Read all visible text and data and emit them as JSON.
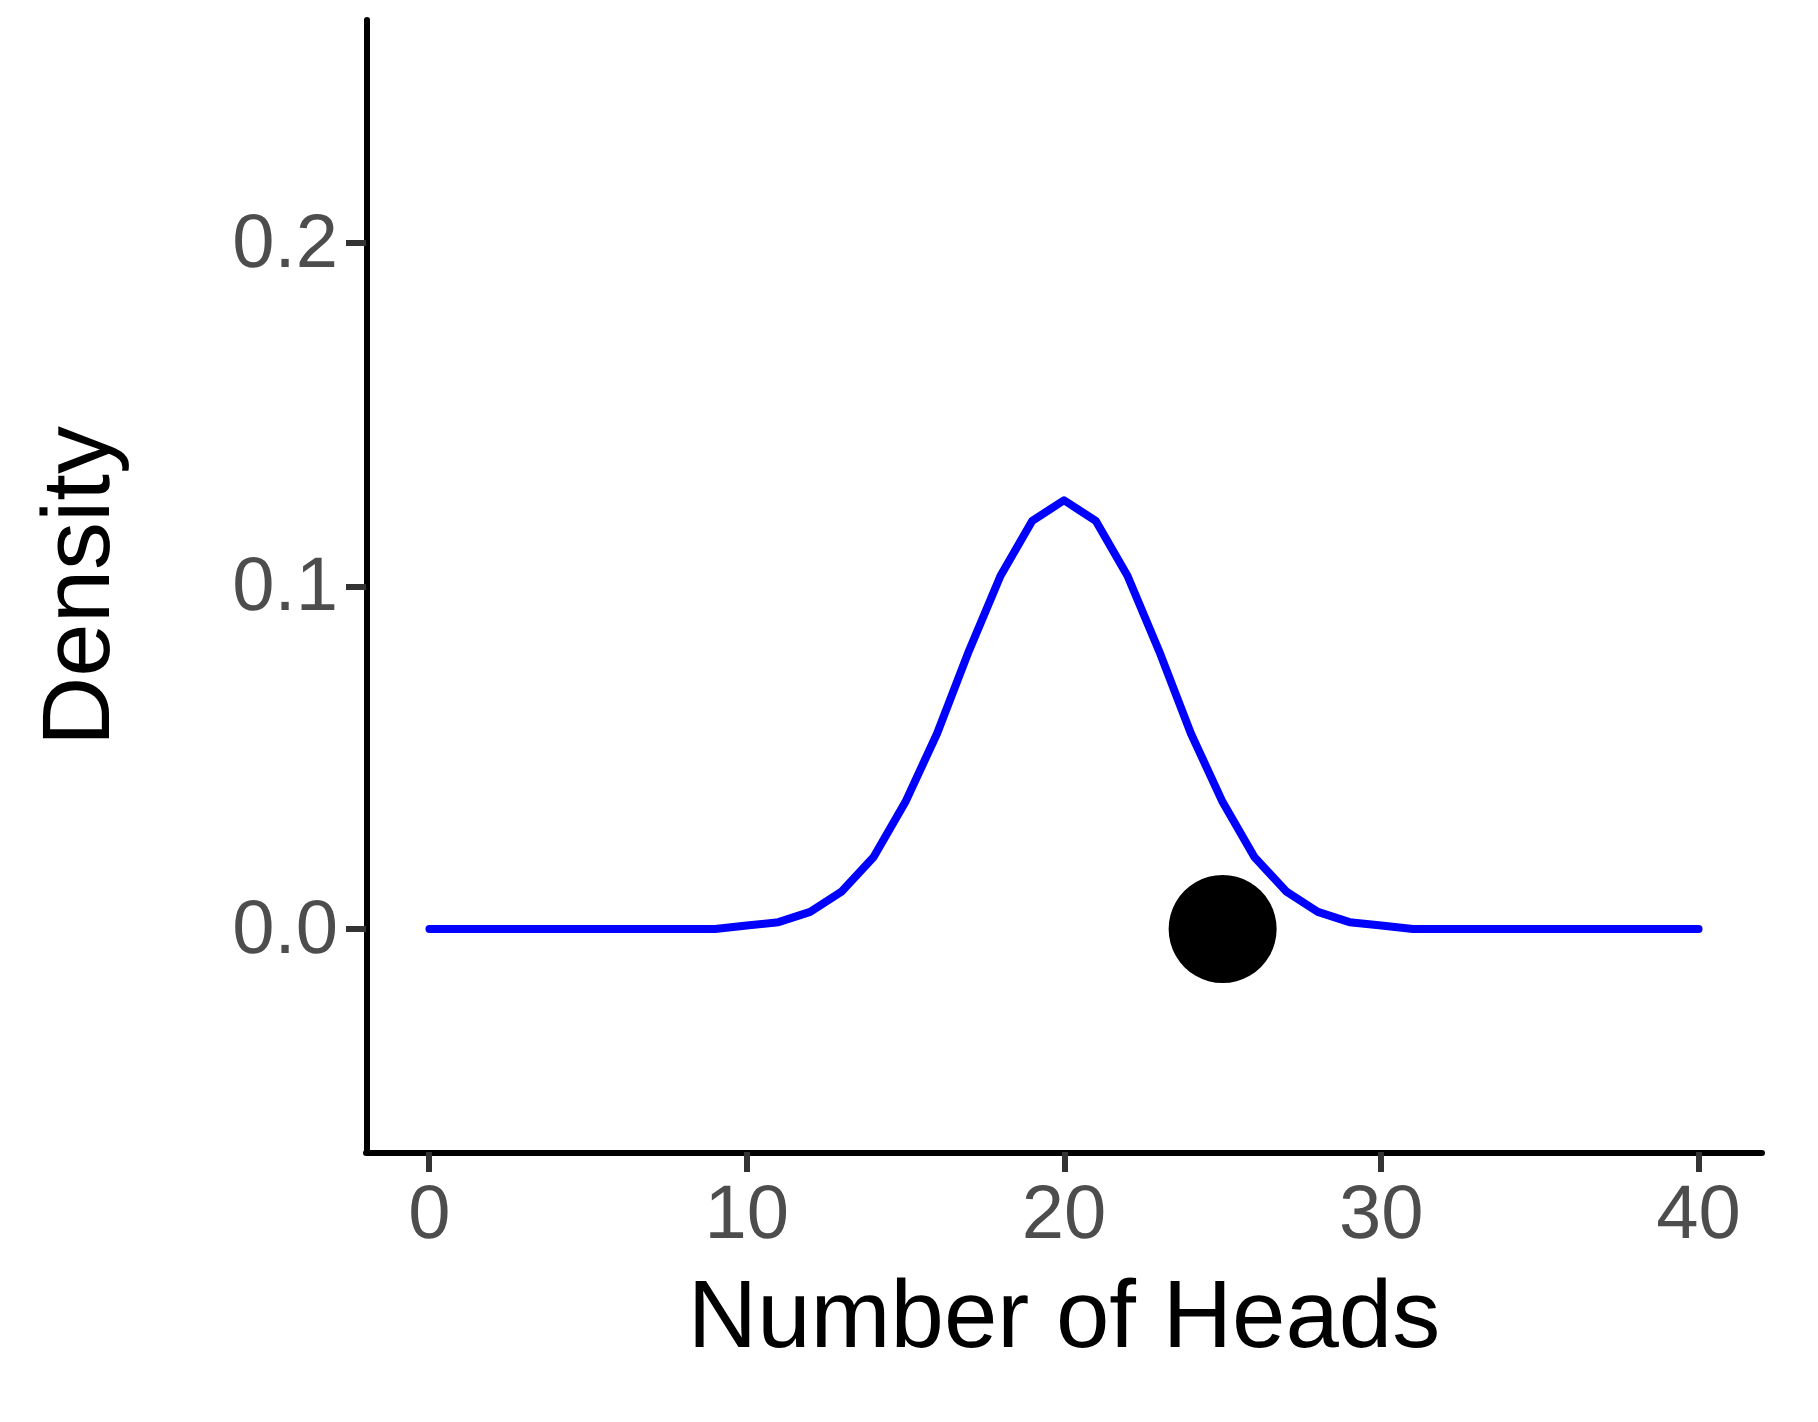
{
  "chart_data": {
    "type": "line",
    "xlabel": "Number of Heads",
    "ylabel": "Density",
    "xlim": [
      -2,
      42
    ],
    "xticks": [
      0,
      10,
      20,
      30,
      40
    ],
    "ylim": [
      -0.065,
      0.265
    ],
    "yticks": [
      {
        "value": 0,
        "label": "0.0"
      },
      0.1,
      0.2
    ],
    "grid": false,
    "marker": "none",
    "series": [
      {
        "color": "#0000ff",
        "line_style": "solid",
        "x": [
          0,
          1,
          2,
          3,
          4,
          5,
          6,
          7,
          8,
          9,
          10,
          11,
          12,
          13,
          14,
          15,
          16,
          17,
          18,
          19,
          20,
          21,
          22,
          23,
          24,
          25,
          26,
          27,
          28,
          29,
          30,
          31,
          32,
          33,
          34,
          35,
          36,
          37,
          38,
          39,
          40
        ],
        "values": [
          0,
          0,
          0,
          0,
          0,
          0,
          0,
          0,
          0,
          0.0,
          0.001,
          0.002,
          0.005,
          0.011,
          0.021,
          0.037,
          0.057,
          0.081,
          0.103,
          0.119,
          0.125,
          0.119,
          0.103,
          0.081,
          0.057,
          0.037,
          0.021,
          0.011,
          0.005,
          0.002,
          0.001,
          0.0,
          0,
          0,
          0,
          0,
          0,
          0,
          0,
          0,
          0
        ]
      },
      {
        "type": "scatter",
        "color": "#000000",
        "marker": "circle",
        "x": [
          25
        ],
        "values": [
          0
        ]
      }
    ]
  }
}
